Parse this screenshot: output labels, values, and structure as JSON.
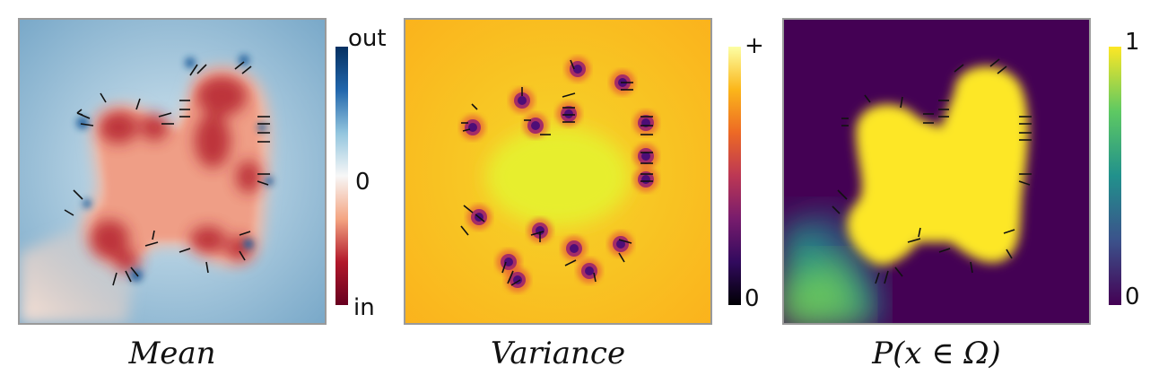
{
  "panels": [
    {
      "caption": "Mean",
      "colorbar": {
        "top": "out",
        "middle": "0",
        "bottom": "in"
      },
      "colors": [
        "#053061",
        "#2166ac",
        "#92c5de",
        "#f7f7f7",
        "#f4a582",
        "#b2182b",
        "#67001f"
      ]
    },
    {
      "caption": "Variance",
      "colorbar": {
        "top": "+",
        "bottom": "0"
      },
      "colors": [
        "#fcffa4",
        "#fbb61a",
        "#ed6925",
        "#bc3754",
        "#781c6d",
        "#320a5e",
        "#000004"
      ]
    },
    {
      "caption": "P(x ∈ Ω)",
      "colorbar": {
        "top": "1",
        "bottom": "0"
      },
      "colors": [
        "#fde725",
        "#5ec962",
        "#21918c",
        "#3b528b",
        "#440154"
      ]
    }
  ]
}
